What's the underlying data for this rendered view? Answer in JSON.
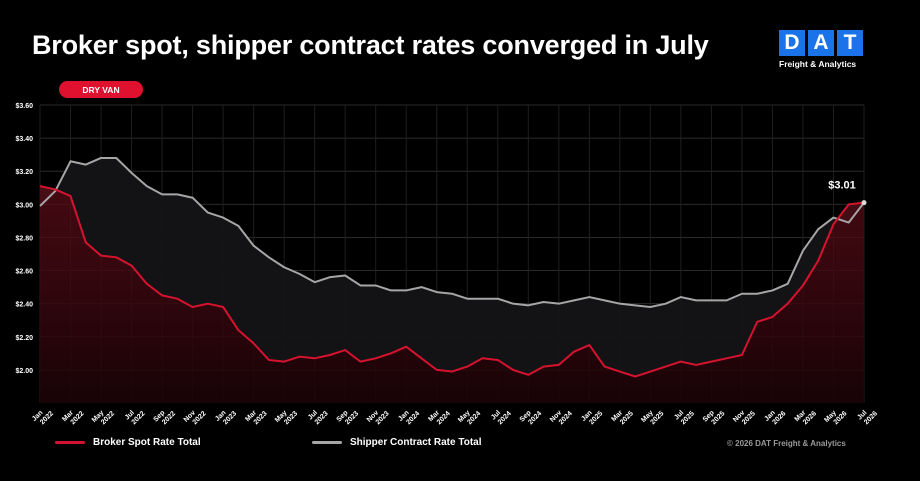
{
  "title": "Broker spot, shipper contract rates converged in July",
  "logo": {
    "letters": [
      "D",
      "A",
      "T"
    ],
    "subtitle": "Freight & Analytics"
  },
  "badge": "DRY VAN",
  "copyright": "© 2026 DAT Freight & Analytics",
  "colors": {
    "spot": "#d6132f",
    "contract": "#a6a6a6",
    "badge": "#e0102f",
    "logo": "#1a73e8"
  },
  "chart_data": {
    "type": "line",
    "x": [
      "Jan 2022",
      "Feb 2022",
      "Mar 2022",
      "Apr 2022",
      "May 2022",
      "Jun 2022",
      "Jul 2022",
      "Aug 2022",
      "Sep 2022",
      "Oct 2022",
      "Nov 2022",
      "Dec 2022",
      "Jan 2023",
      "Feb 2023",
      "Mar 2023",
      "Apr 2023",
      "May 2023",
      "Jun 2023",
      "Jul 2023",
      "Aug 2023",
      "Sep 2023",
      "Oct 2023",
      "Nov 2023",
      "Dec 2023",
      "Jan 2024",
      "Feb 2024",
      "Mar 2024",
      "Apr 2024",
      "May 2024",
      "Jun 2024",
      "Jul 2024",
      "Aug 2024",
      "Sep 2024",
      "Oct 2024",
      "Nov 2024",
      "Dec 2024",
      "Jan 2025",
      "Feb 2025",
      "Mar 2025",
      "Apr 2025",
      "May 2025",
      "Jun 2025",
      "Jul 2025",
      "Aug 2025",
      "Sep 2025",
      "Oct 2025",
      "Nov 2025",
      "Dec 2025",
      "Jan 2026",
      "Feb 2026",
      "Mar 2026",
      "Apr 2026",
      "May 2026",
      "Jun 2026",
      "Jul 2026"
    ],
    "x_tick_labels": [
      [
        "Jan",
        "2022"
      ],
      [
        "Mar",
        "2022"
      ],
      [
        "May",
        "2022"
      ],
      [
        "Jul",
        "2022"
      ],
      [
        "Sep",
        "2022"
      ],
      [
        "Nov",
        "2022"
      ],
      [
        "Jan",
        "2023"
      ],
      [
        "Mar",
        "2023"
      ],
      [
        "May",
        "2023"
      ],
      [
        "Jul",
        "2023"
      ],
      [
        "Sep",
        "2023"
      ],
      [
        "Nov",
        "2023"
      ],
      [
        "Jan",
        "2024"
      ],
      [
        "Mar",
        "2024"
      ],
      [
        "May",
        "2024"
      ],
      [
        "Jul",
        "2024"
      ],
      [
        "Sep",
        "2024"
      ],
      [
        "Nov",
        "2024"
      ],
      [
        "Jan",
        "2025"
      ],
      [
        "Mar",
        "2025"
      ],
      [
        "May",
        "2025"
      ],
      [
        "Jul",
        "2025"
      ],
      [
        "Sep",
        "2025"
      ],
      [
        "Nov",
        "2025"
      ],
      [
        "Jan",
        "2026"
      ],
      [
        "Mar",
        "2026"
      ],
      [
        "May",
        "2026"
      ],
      [
        "Jul",
        "2026"
      ]
    ],
    "y_ticks": [
      2.0,
      2.2,
      2.4,
      2.6,
      2.8,
      3.0,
      3.2,
      3.4,
      3.6
    ],
    "y_tick_labels": [
      "$2.00",
      "$2.20",
      "$2.40",
      "$2.60",
      "$2.80",
      "$3.00",
      "$3.20",
      "$3.40",
      "$3.60"
    ],
    "ylim": [
      1.8,
      3.6
    ],
    "grid": true,
    "legend_position": "bottom",
    "series": [
      {
        "name": "Broker Spot Rate Total",
        "color": "#d6132f",
        "values": [
          3.11,
          3.09,
          3.05,
          2.77,
          2.69,
          2.68,
          2.63,
          2.52,
          2.45,
          2.43,
          2.38,
          2.4,
          2.38,
          2.24,
          2.16,
          2.06,
          2.05,
          2.08,
          2.07,
          2.09,
          2.12,
          2.05,
          2.07,
          2.1,
          2.14,
          2.07,
          2.0,
          1.99,
          2.02,
          2.07,
          2.06,
          2.0,
          1.97,
          2.02,
          2.03,
          2.11,
          2.15,
          2.02,
          1.99,
          1.96,
          1.99,
          2.02,
          2.05,
          2.03,
          2.05,
          2.07,
          2.09,
          2.29,
          2.32,
          2.4,
          2.51,
          2.66,
          2.88,
          3.0,
          3.01
        ]
      },
      {
        "name": "Shipper Contract Rate Total",
        "color": "#a6a6a6",
        "values": [
          2.99,
          3.08,
          3.26,
          3.24,
          3.28,
          3.28,
          3.19,
          3.11,
          3.06,
          3.06,
          3.04,
          2.95,
          2.92,
          2.87,
          2.75,
          2.68,
          2.62,
          2.58,
          2.53,
          2.56,
          2.57,
          2.51,
          2.51,
          2.48,
          2.48,
          2.5,
          2.47,
          2.46,
          2.43,
          2.43,
          2.43,
          2.4,
          2.39,
          2.41,
          2.4,
          2.42,
          2.44,
          2.42,
          2.4,
          2.39,
          2.38,
          2.4,
          2.44,
          2.42,
          2.42,
          2.42,
          2.46,
          2.46,
          2.48,
          2.52,
          2.72,
          2.85,
          2.92,
          2.89,
          3.01
        ]
      }
    ],
    "annotation": {
      "text": "$3.01",
      "index": 54
    }
  }
}
